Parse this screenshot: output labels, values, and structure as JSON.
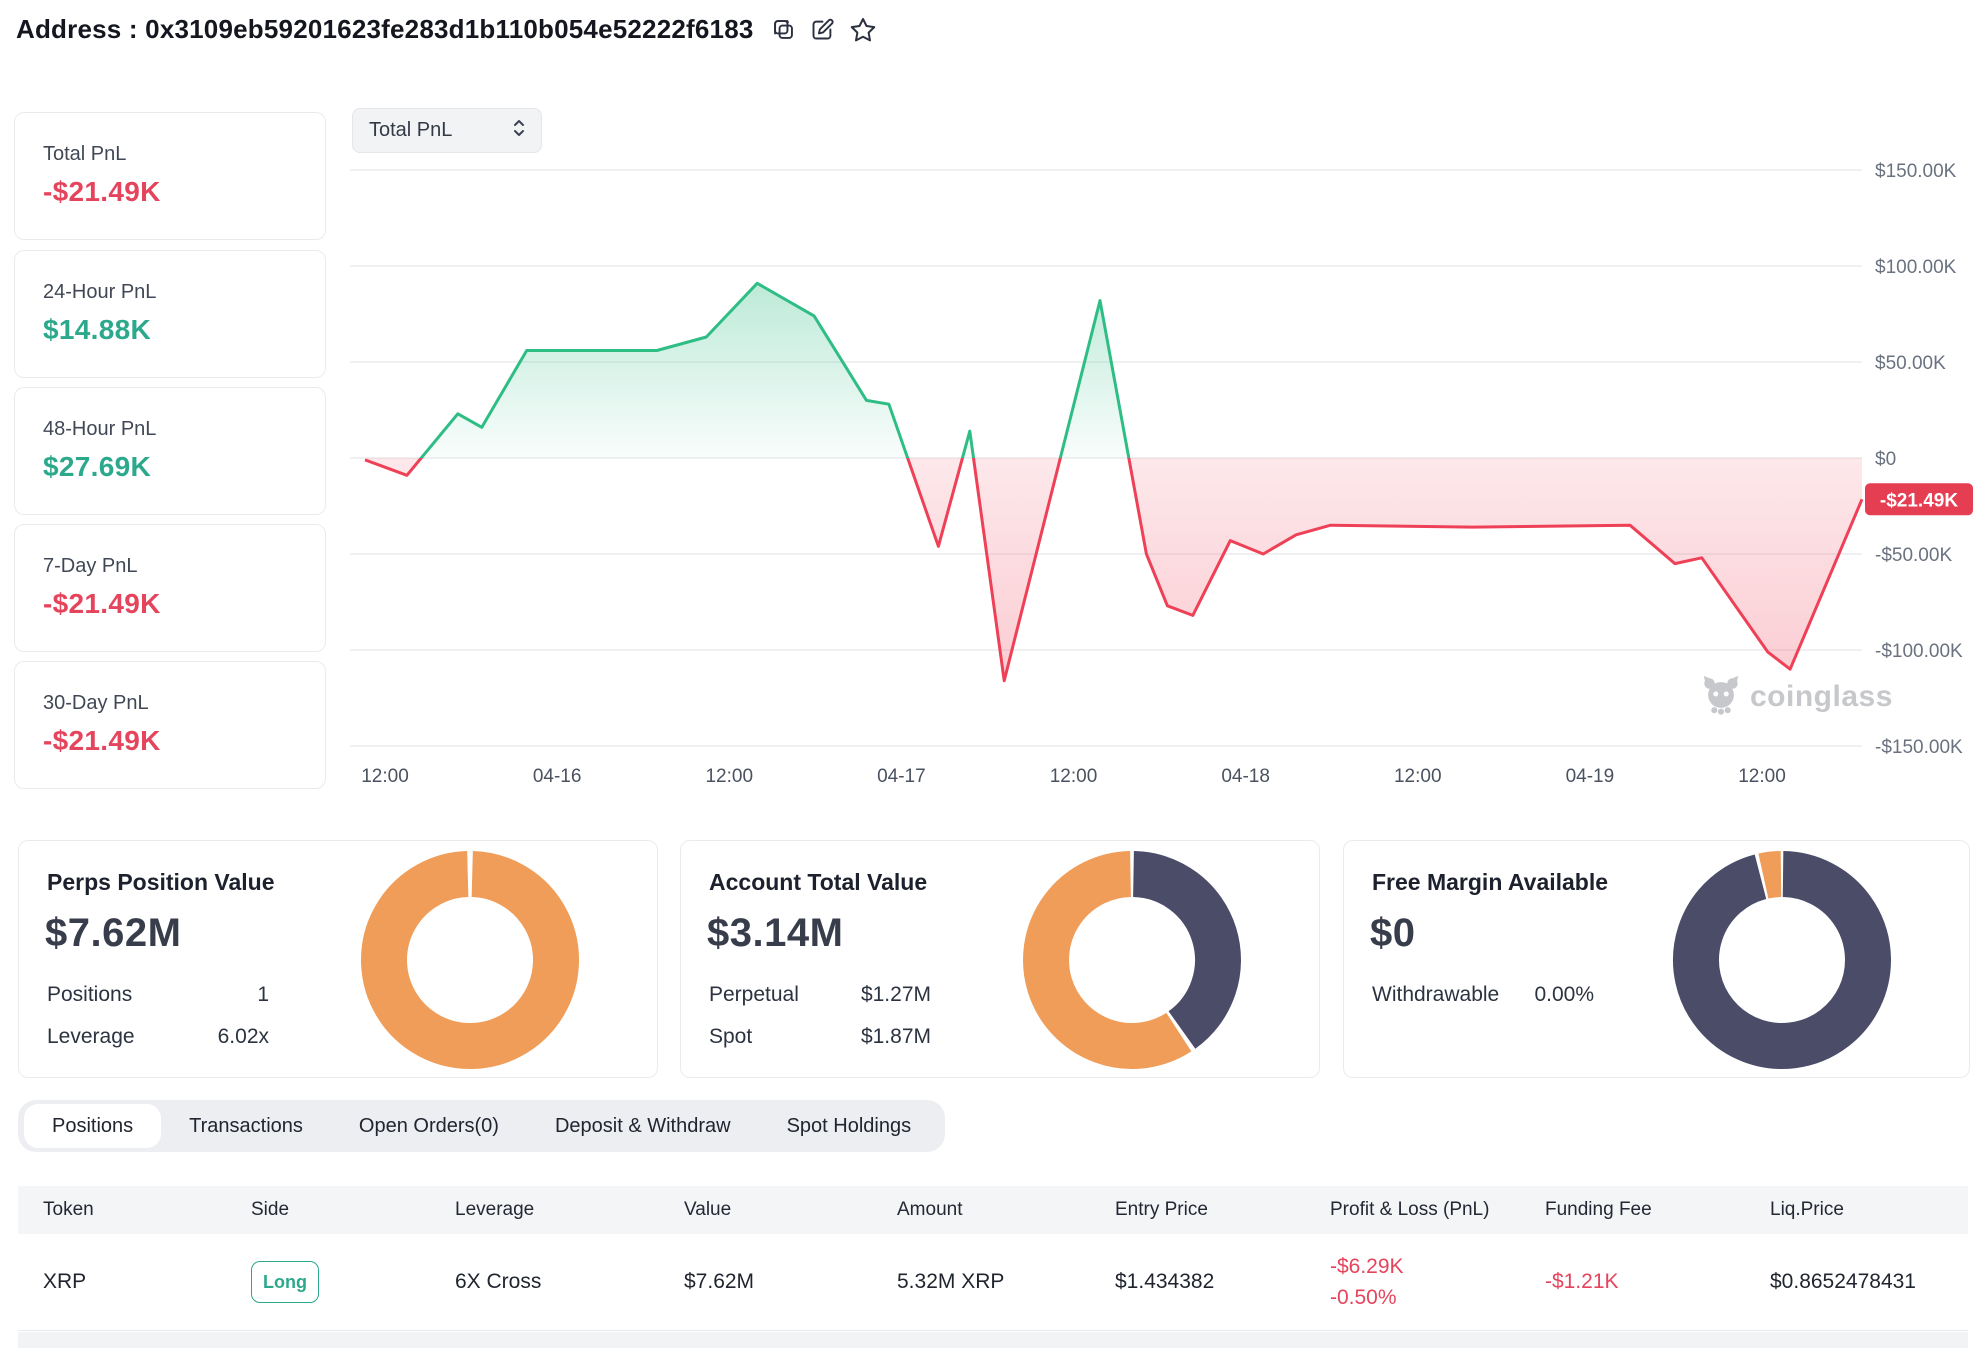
{
  "header": {
    "address_label": "Address :",
    "address": "0x3109eb59201623fe283d1b110b054e52222f6183",
    "action_icons": [
      "copy-icon",
      "edit-icon",
      "star-icon"
    ]
  },
  "colors": {
    "accent_green": "#2CA98C",
    "accent_red": "#E5455C",
    "chart_green": "#2EBD85",
    "chart_red": "#EE4056",
    "badge_red": "#E53E52",
    "donut_orange": "#EF9D58",
    "donut_navy": "#4B4C68"
  },
  "pnl_cards": [
    {
      "label": "Total PnL",
      "value": "-$21.49K",
      "tone": "neg"
    },
    {
      "label": "24-Hour PnL",
      "value": "$14.88K",
      "tone": "pos"
    },
    {
      "label": "48-Hour PnL",
      "value": "$27.69K",
      "tone": "pos"
    },
    {
      "label": "7-Day PnL",
      "value": "-$21.49K",
      "tone": "neg"
    },
    {
      "label": "30-Day PnL",
      "value": "-$21.49K",
      "tone": "neg"
    }
  ],
  "chart": {
    "selector_label": "Total PnL",
    "selector_icon": "chevron-updown-icon",
    "watermark": "coinglass",
    "watermark_icon": "coinglass-bear-icon"
  },
  "chart_data": {
    "type": "area",
    "title": "Total PnL",
    "xlabel": "time",
    "ylabel": "PnL (USD)",
    "x_ticks": [
      "12:00",
      "04-16",
      "12:00",
      "04-17",
      "12:00",
      "04-18",
      "12:00",
      "04-19",
      "12:00"
    ],
    "y_ticks": [
      "$150.00K",
      "$100.00K",
      "$50.00K",
      "$0",
      "-$50.00K",
      "-$100.00K",
      "-$150.00K"
    ],
    "ylim_k": [
      -150,
      150
    ],
    "grid": true,
    "current_value_label": "-$21.49K",
    "current_value_k": -21.49,
    "points_unit": "x = fraction of visible range, y = PnL in $K",
    "points": [
      [
        0.0,
        -1
      ],
      [
        0.028,
        -9
      ],
      [
        0.062,
        23
      ],
      [
        0.078,
        16
      ],
      [
        0.108,
        56
      ],
      [
        0.195,
        56
      ],
      [
        0.228,
        63
      ],
      [
        0.262,
        91
      ],
      [
        0.3,
        74
      ],
      [
        0.335,
        30
      ],
      [
        0.35,
        28
      ],
      [
        0.383,
        -46
      ],
      [
        0.404,
        14
      ],
      [
        0.427,
        -116
      ],
      [
        0.491,
        82
      ],
      [
        0.522,
        -50
      ],
      [
        0.536,
        -77
      ],
      [
        0.553,
        -82
      ],
      [
        0.578,
        -43
      ],
      [
        0.6,
        -50
      ],
      [
        0.622,
        -40
      ],
      [
        0.645,
        -35
      ],
      [
        0.74,
        -36
      ],
      [
        0.845,
        -35
      ],
      [
        0.875,
        -55
      ],
      [
        0.893,
        -52
      ],
      [
        0.937,
        -101
      ],
      [
        0.952,
        -110
      ],
      [
        1.0,
        -21.49
      ]
    ]
  },
  "summary_cards": [
    {
      "title": "Perps Position Value",
      "value": "$7.62M",
      "rows": [
        {
          "label": "Positions",
          "value": "1"
        },
        {
          "label": "Leverage",
          "value": "6.02x"
        }
      ],
      "donut": {
        "segments": [
          {
            "name": "perps",
            "color": "#EF9D58",
            "start": 1.5,
            "end": 358.5
          }
        ]
      }
    },
    {
      "title": "Account Total Value",
      "value": "$3.14M",
      "rows": [
        {
          "label": "Perpetual",
          "value": "$1.27M"
        },
        {
          "label": "Spot",
          "value": "$1.87M"
        }
      ],
      "donut": {
        "segments": [
          {
            "name": "perpetual",
            "color": "#4B4C68",
            "start": 1,
            "end": 144.5
          },
          {
            "name": "spot",
            "color": "#EF9D58",
            "start": 147,
            "end": 359
          }
        ]
      }
    },
    {
      "title": "Free Margin Available",
      "value": "$0",
      "rows": [
        {
          "label": "Withdrawable",
          "value": "0.00%"
        }
      ],
      "donut": {
        "segments": [
          {
            "name": "used",
            "color": "#4B4C68",
            "start": 0.7,
            "end": 345.5
          },
          {
            "name": "free",
            "color": "#EF9D58",
            "start": 347.5,
            "end": 359.3
          }
        ]
      }
    }
  ],
  "tabs": {
    "items": [
      "Positions",
      "Transactions",
      "Open Orders(0)",
      "Deposit & Withdraw",
      "Spot Holdings"
    ],
    "active": "Positions"
  },
  "table": {
    "columns": [
      "Token",
      "Side",
      "Leverage",
      "Value",
      "Amount",
      "Entry Price",
      "Profit & Loss (PnL)",
      "Funding Fee",
      "Liq.Price"
    ],
    "rows": [
      {
        "token": "XRP",
        "side": "Long",
        "leverage": "6X Cross",
        "value": "$7.62M",
        "amount": "5.32M XRP",
        "entry_price": "$1.434382",
        "pnl": "-$6.29K",
        "pnl_pct": "-0.50%",
        "funding_fee": "-$1.21K",
        "liq_price": "$0.8652478431"
      }
    ]
  }
}
